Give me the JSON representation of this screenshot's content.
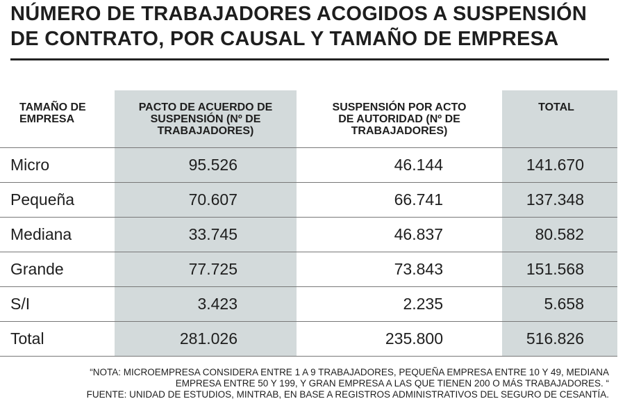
{
  "header": {
    "title_lines": [
      "NÚMERO DE TRABAJADORES ACOGIDOS A SUSPENSIÓN",
      "DE CONTRATO, POR CAUSAL Y TAMAÑO DE EMPRESA"
    ]
  },
  "table": {
    "columns": [
      "TAMAÑO DE EMPRESA",
      "PACTO DE ACUERDO DE SUSPENSIÓN (Nº DE TRABAJADORES)",
      "SUSPENSIÓN POR ACTO DE AUTORIDAD (Nº DE TRABAJADORES)",
      "TOTAL"
    ],
    "rows": [
      [
        "Micro",
        "95.526",
        "46.144",
        "141.670"
      ],
      [
        "Pequeña",
        "70.607",
        "66.741",
        "137.348"
      ],
      [
        "Mediana",
        "33.745",
        "46.837",
        "80.582"
      ],
      [
        "Grande",
        "77.725",
        "73.843",
        "151.568"
      ],
      [
        "S/I",
        "3.423",
        "2.235",
        "5.658"
      ],
      [
        "Total",
        "281.026",
        "235.800",
        "516.826"
      ]
    ]
  },
  "notes": [
    "“NOTA: MICROEMPRESA CONSIDERA ENTRE 1 A 9 TRABAJADORES, PEQUEÑA EMPRESA ENTRE 10 Y 49, MEDIANA",
    "EMPRESA ENTRE 50 Y 199, Y GRAN EMPRESA A LAS QUE TIENEN 200 O MÁS TRABAJADORES. “",
    "FUENTE: UNIDAD DE ESTUDIOS, MINTRAB, EN BASE A REGISTROS ADMINISTRATIVOS DEL SEGURO DE CESANTÍA."
  ]
}
